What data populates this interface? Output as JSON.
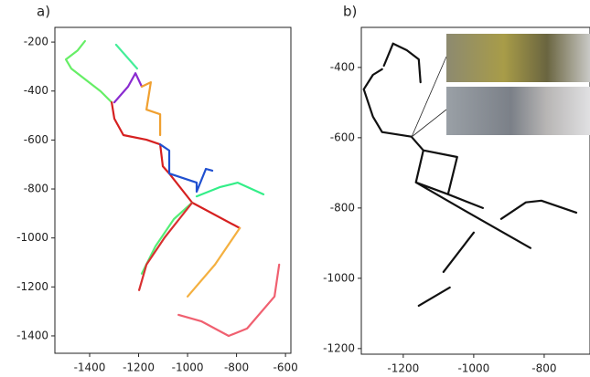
{
  "chart_data": [
    {
      "type": "line",
      "title": "a)",
      "xlim": [
        -1542,
        -578
      ],
      "xticks": [
        -1400,
        -1200,
        -1000,
        -800,
        -600
      ],
      "ylim": [
        -1471,
        -140
      ],
      "yticks": [
        -200,
        -400,
        -600,
        -800,
        -1000,
        -1200,
        -1400
      ],
      "series": [
        {
          "color": "#66ee66",
          "x": [
            -1419,
            -1449,
            -1497,
            -1475,
            -1355,
            -1310
          ],
          "y": [
            -196,
            -234,
            -271,
            -308,
            -401,
            -446
          ]
        },
        {
          "color": "#44ee99",
          "x": [
            -1292,
            -1206
          ],
          "y": [
            -211,
            -308
          ]
        },
        {
          "color": "#d62020",
          "x": [
            -1310,
            -1299,
            -1262,
            -1168,
            -1112,
            -1101,
            -1075,
            -981,
            -787
          ],
          "y": [
            -446,
            -513,
            -580,
            -599,
            -618,
            -707,
            -737,
            -856,
            -960
          ]
        },
        {
          "color": "#8a2bd0",
          "x": [
            -1299,
            -1243,
            -1213,
            -1187
          ],
          "y": [
            -446,
            -382,
            -327,
            -382
          ]
        },
        {
          "color": "#f0a030",
          "x": [
            -1187,
            -1150,
            -1168,
            -1112,
            -1112
          ],
          "y": [
            -382,
            -364,
            -476,
            -495,
            -580
          ]
        },
        {
          "color": "#2050d0",
          "x": [
            -1112,
            -1075,
            -1075,
            -963,
            -963,
            -925,
            -899
          ],
          "y": [
            -618,
            -643,
            -737,
            -774,
            -811,
            -718,
            -725
          ]
        },
        {
          "color": "#33ee88",
          "x": [
            -963,
            -869,
            -795,
            -690
          ],
          "y": [
            -830,
            -793,
            -774,
            -822
          ]
        },
        {
          "color": "#55ee77",
          "x": [
            -981,
            -1056,
            -1131,
            -1187
          ],
          "y": [
            -856,
            -923,
            -1034,
            -1146
          ]
        },
        {
          "color": "#f4b040",
          "x": [
            -787,
            -888,
            -1000
          ],
          "y": [
            -960,
            -1109,
            -1239
          ]
        },
        {
          "color": "#d83030",
          "x": [
            -981,
            -1093,
            -1168,
            -1198
          ],
          "y": [
            -856,
            -997,
            -1109,
            -1213
          ]
        },
        {
          "color": "#f06070",
          "x": [
            -1037,
            -944,
            -832,
            -757,
            -645,
            -626
          ],
          "y": [
            -1314,
            -1340,
            -1400,
            -1370,
            -1239,
            -1109
          ]
        }
      ]
    },
    {
      "type": "line",
      "title": "b)",
      "xlim": [
        -1319,
        -670
      ],
      "xticks": [
        -1200,
        -1000,
        -800
      ],
      "ylim": [
        -1216,
        -286
      ],
      "yticks": [
        -400,
        -600,
        -800,
        -1000,
        -1200
      ],
      "series": [
        {
          "color": "#111111",
          "x": [
            -1312,
            -1286,
            -1260,
            null,
            -1255,
            -1229,
            -1190,
            -1156,
            -1151,
            null,
            -1312,
            -1286,
            -1260,
            -1177,
            -1143,
            -1164,
            -1073,
            -974,
            null,
            -1143,
            -1047,
            -1073,
            null,
            -1164,
            -1021,
            -839,
            null,
            -922,
            -852,
            -808,
            -709,
            null,
            -1000,
            -1086,
            null,
            -1068,
            -1156
          ],
          "y": [
            -462,
            -421,
            -405,
            null,
            -395,
            -332,
            -351,
            -377,
            -442,
            null,
            -462,
            -540,
            -584,
            -597,
            -636,
            -727,
            -761,
            -800,
            null,
            -636,
            -655,
            -761,
            null,
            -727,
            -810,
            -914,
            null,
            -831,
            -784,
            -779,
            -813,
            null,
            -870,
            -982,
            null,
            -1026,
            -1078
          ]
        }
      ]
    }
  ]
}
